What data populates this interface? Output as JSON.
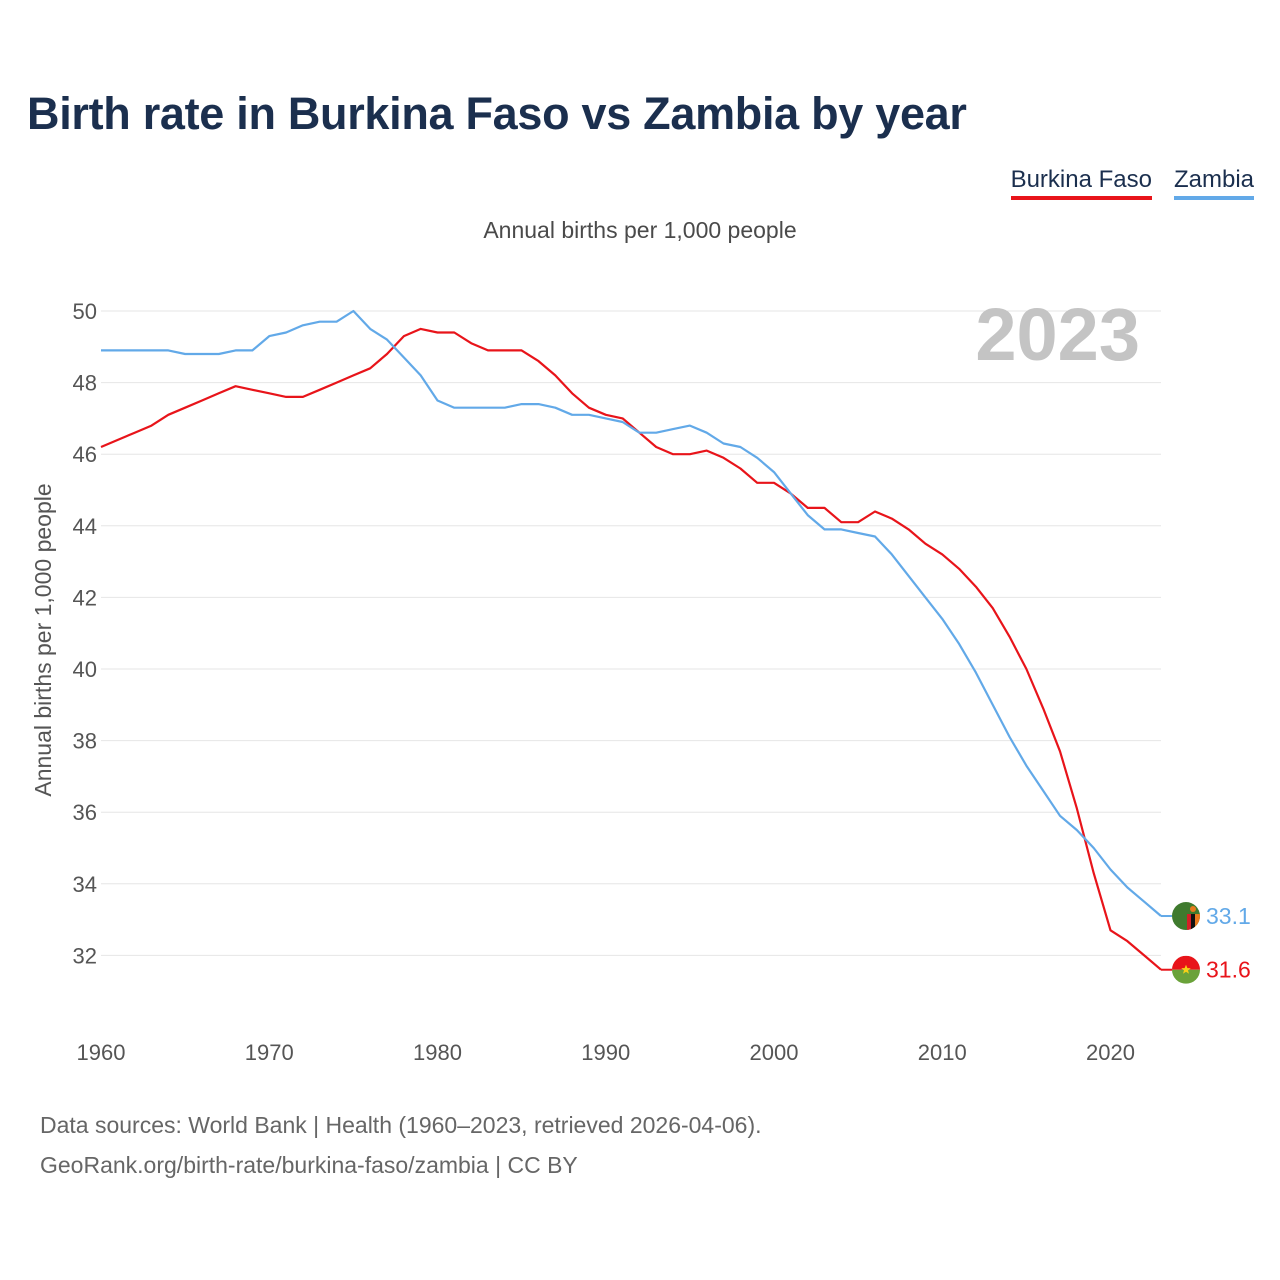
{
  "title": "Birth rate in Burkina Faso vs Zambia by year",
  "legend": {
    "burkina": "Burkina Faso",
    "zambia": "Zambia"
  },
  "subtitle": "Annual births per 1,000 people",
  "footer": {
    "line1": "Data sources: World Bank | Health (1960–2023, retrieved 2026-04-06).",
    "line2": "GeoRank.org/birth-rate/burkina-faso/zambia | CC BY"
  },
  "colors": {
    "burkina": "#e8141a",
    "zambia": "#62a9e8",
    "grid": "#e6e6e6",
    "year": "#c4c4c4"
  },
  "chart_data": {
    "type": "line",
    "title": "Birth rate in Burkina Faso vs Zambia by year",
    "ylabel": "Annual births per 1,000 people",
    "xlabel": "",
    "year_label": "2023",
    "xlim": [
      1960,
      2023
    ],
    "ylim": [
      31,
      50.4
    ],
    "yticks": [
      32,
      34,
      36,
      38,
      40,
      42,
      44,
      46,
      48,
      50
    ],
    "xticks": [
      1960,
      1970,
      1980,
      1990,
      2000,
      2010,
      2020
    ],
    "x": [
      1960,
      1961,
      1962,
      1963,
      1964,
      1965,
      1966,
      1967,
      1968,
      1969,
      1970,
      1971,
      1972,
      1973,
      1974,
      1975,
      1976,
      1977,
      1978,
      1979,
      1980,
      1981,
      1982,
      1983,
      1984,
      1985,
      1986,
      1987,
      1988,
      1989,
      1990,
      1991,
      1992,
      1993,
      1994,
      1995,
      1996,
      1997,
      1998,
      1999,
      2000,
      2001,
      2002,
      2003,
      2004,
      2005,
      2006,
      2007,
      2008,
      2009,
      2010,
      2011,
      2012,
      2013,
      2014,
      2015,
      2016,
      2017,
      2018,
      2019,
      2020,
      2021,
      2022,
      2023
    ],
    "series": [
      {
        "name": "Burkina Faso",
        "end_label": "31.6",
        "values": [
          46.2,
          46.4,
          46.6,
          46.8,
          47.1,
          47.3,
          47.5,
          47.7,
          47.9,
          47.8,
          47.7,
          47.6,
          47.6,
          47.8,
          48.0,
          48.2,
          48.4,
          48.8,
          49.3,
          49.5,
          49.4,
          49.4,
          49.1,
          48.9,
          48.9,
          48.9,
          48.6,
          48.2,
          47.7,
          47.3,
          47.1,
          47.0,
          46.6,
          46.2,
          46.0,
          46.0,
          46.1,
          45.9,
          45.6,
          45.2,
          45.2,
          44.9,
          44.5,
          44.5,
          44.1,
          44.1,
          44.4,
          44.2,
          43.9,
          43.5,
          43.2,
          42.8,
          42.3,
          41.7,
          40.9,
          40.0,
          38.9,
          37.7,
          36.1,
          34.3,
          32.7,
          32.4,
          32.0,
          31.6
        ]
      },
      {
        "name": "Zambia",
        "end_label": "33.1",
        "values": [
          48.9,
          48.9,
          48.9,
          48.9,
          48.9,
          48.8,
          48.8,
          48.8,
          48.9,
          48.9,
          49.3,
          49.4,
          49.6,
          49.7,
          49.7,
          50.0,
          49.5,
          49.2,
          48.7,
          48.2,
          47.5,
          47.3,
          47.3,
          47.3,
          47.3,
          47.4,
          47.4,
          47.3,
          47.1,
          47.1,
          47.0,
          46.9,
          46.6,
          46.6,
          46.7,
          46.8,
          46.6,
          46.3,
          46.2,
          45.9,
          45.5,
          44.9,
          44.3,
          43.9,
          43.9,
          43.8,
          43.7,
          43.2,
          42.6,
          42.0,
          41.4,
          40.7,
          39.9,
          39.0,
          38.1,
          37.3,
          36.6,
          35.9,
          35.5,
          35.0,
          34.4,
          33.9,
          33.5,
          33.1
        ]
      }
    ]
  }
}
